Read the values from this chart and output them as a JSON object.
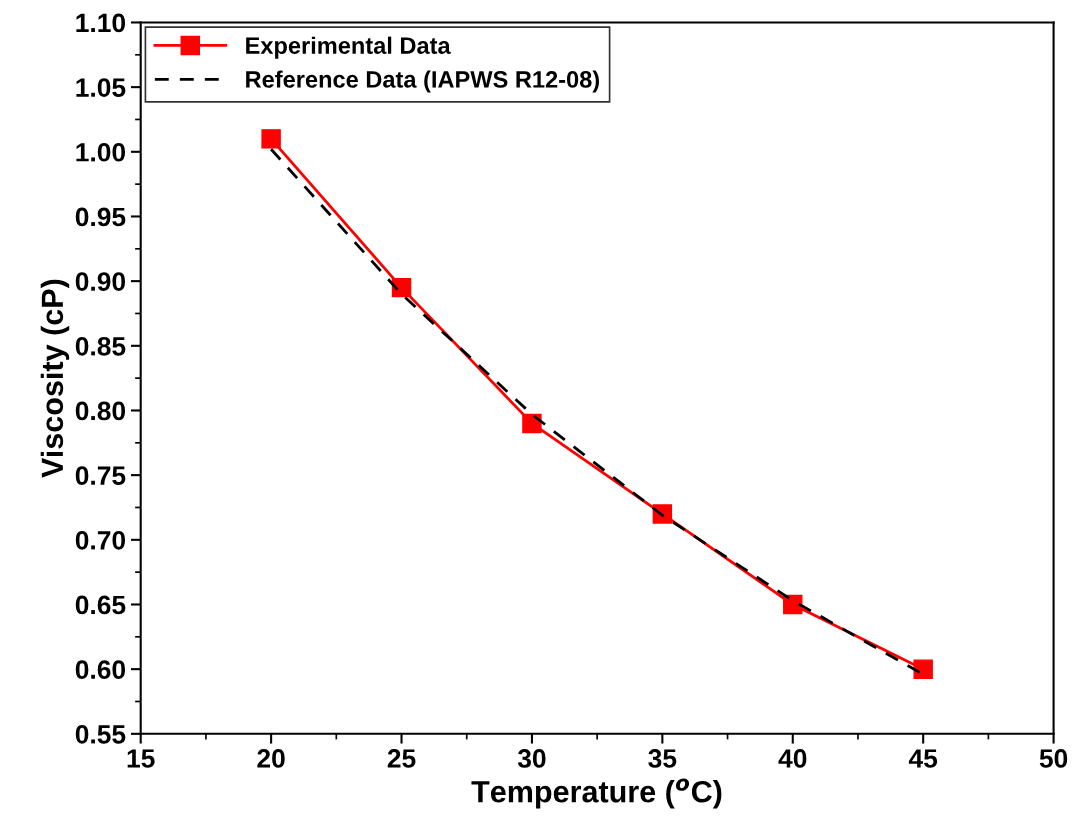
{
  "chart_data": {
    "type": "line",
    "xlabel": "Temperature ($^{o}$C)",
    "ylabel": "Viscosity (cP)",
    "x": [
      20,
      25,
      30,
      35,
      40,
      45
    ],
    "series": [
      {
        "name": "Experimental Data",
        "color": "#ff0000",
        "values": [
          1.01,
          0.895,
          0.79,
          0.72,
          0.65,
          0.6
        ],
        "marker": "square",
        "line_style": "solid"
      },
      {
        "name": "Reference Data (IAPWS R12-08)",
        "color": "#000000",
        "values": [
          1.002,
          0.89,
          0.797,
          0.719,
          0.653,
          0.596
        ],
        "marker": "none",
        "line_style": "dashed"
      }
    ],
    "xlim": [
      15,
      50
    ],
    "xticks": [
      15,
      20,
      25,
      30,
      35,
      40,
      45,
      50
    ],
    "ylim": [
      0.55,
      1.1
    ],
    "yticks": [
      {
        "value": 0.55,
        "label": "0.55"
      },
      {
        "value": 0.6,
        "label": "0.60"
      },
      {
        "value": 0.65,
        "label": "0.65"
      },
      {
        "value": 0.7,
        "label": "0.70"
      },
      {
        "value": 0.75,
        "label": "0.75"
      },
      {
        "value": 0.8,
        "label": "0.80"
      },
      {
        "value": 0.85,
        "label": "0.85"
      },
      {
        "value": 0.9,
        "label": "0.90"
      },
      {
        "value": 0.95,
        "label": "0.95"
      },
      {
        "value": 1.0,
        "label": "1.00"
      },
      {
        "value": 1.05,
        "label": "1.05"
      },
      {
        "value": 1.1,
        "label": "1.10"
      }
    ],
    "grid": false,
    "legend": "top left"
  }
}
